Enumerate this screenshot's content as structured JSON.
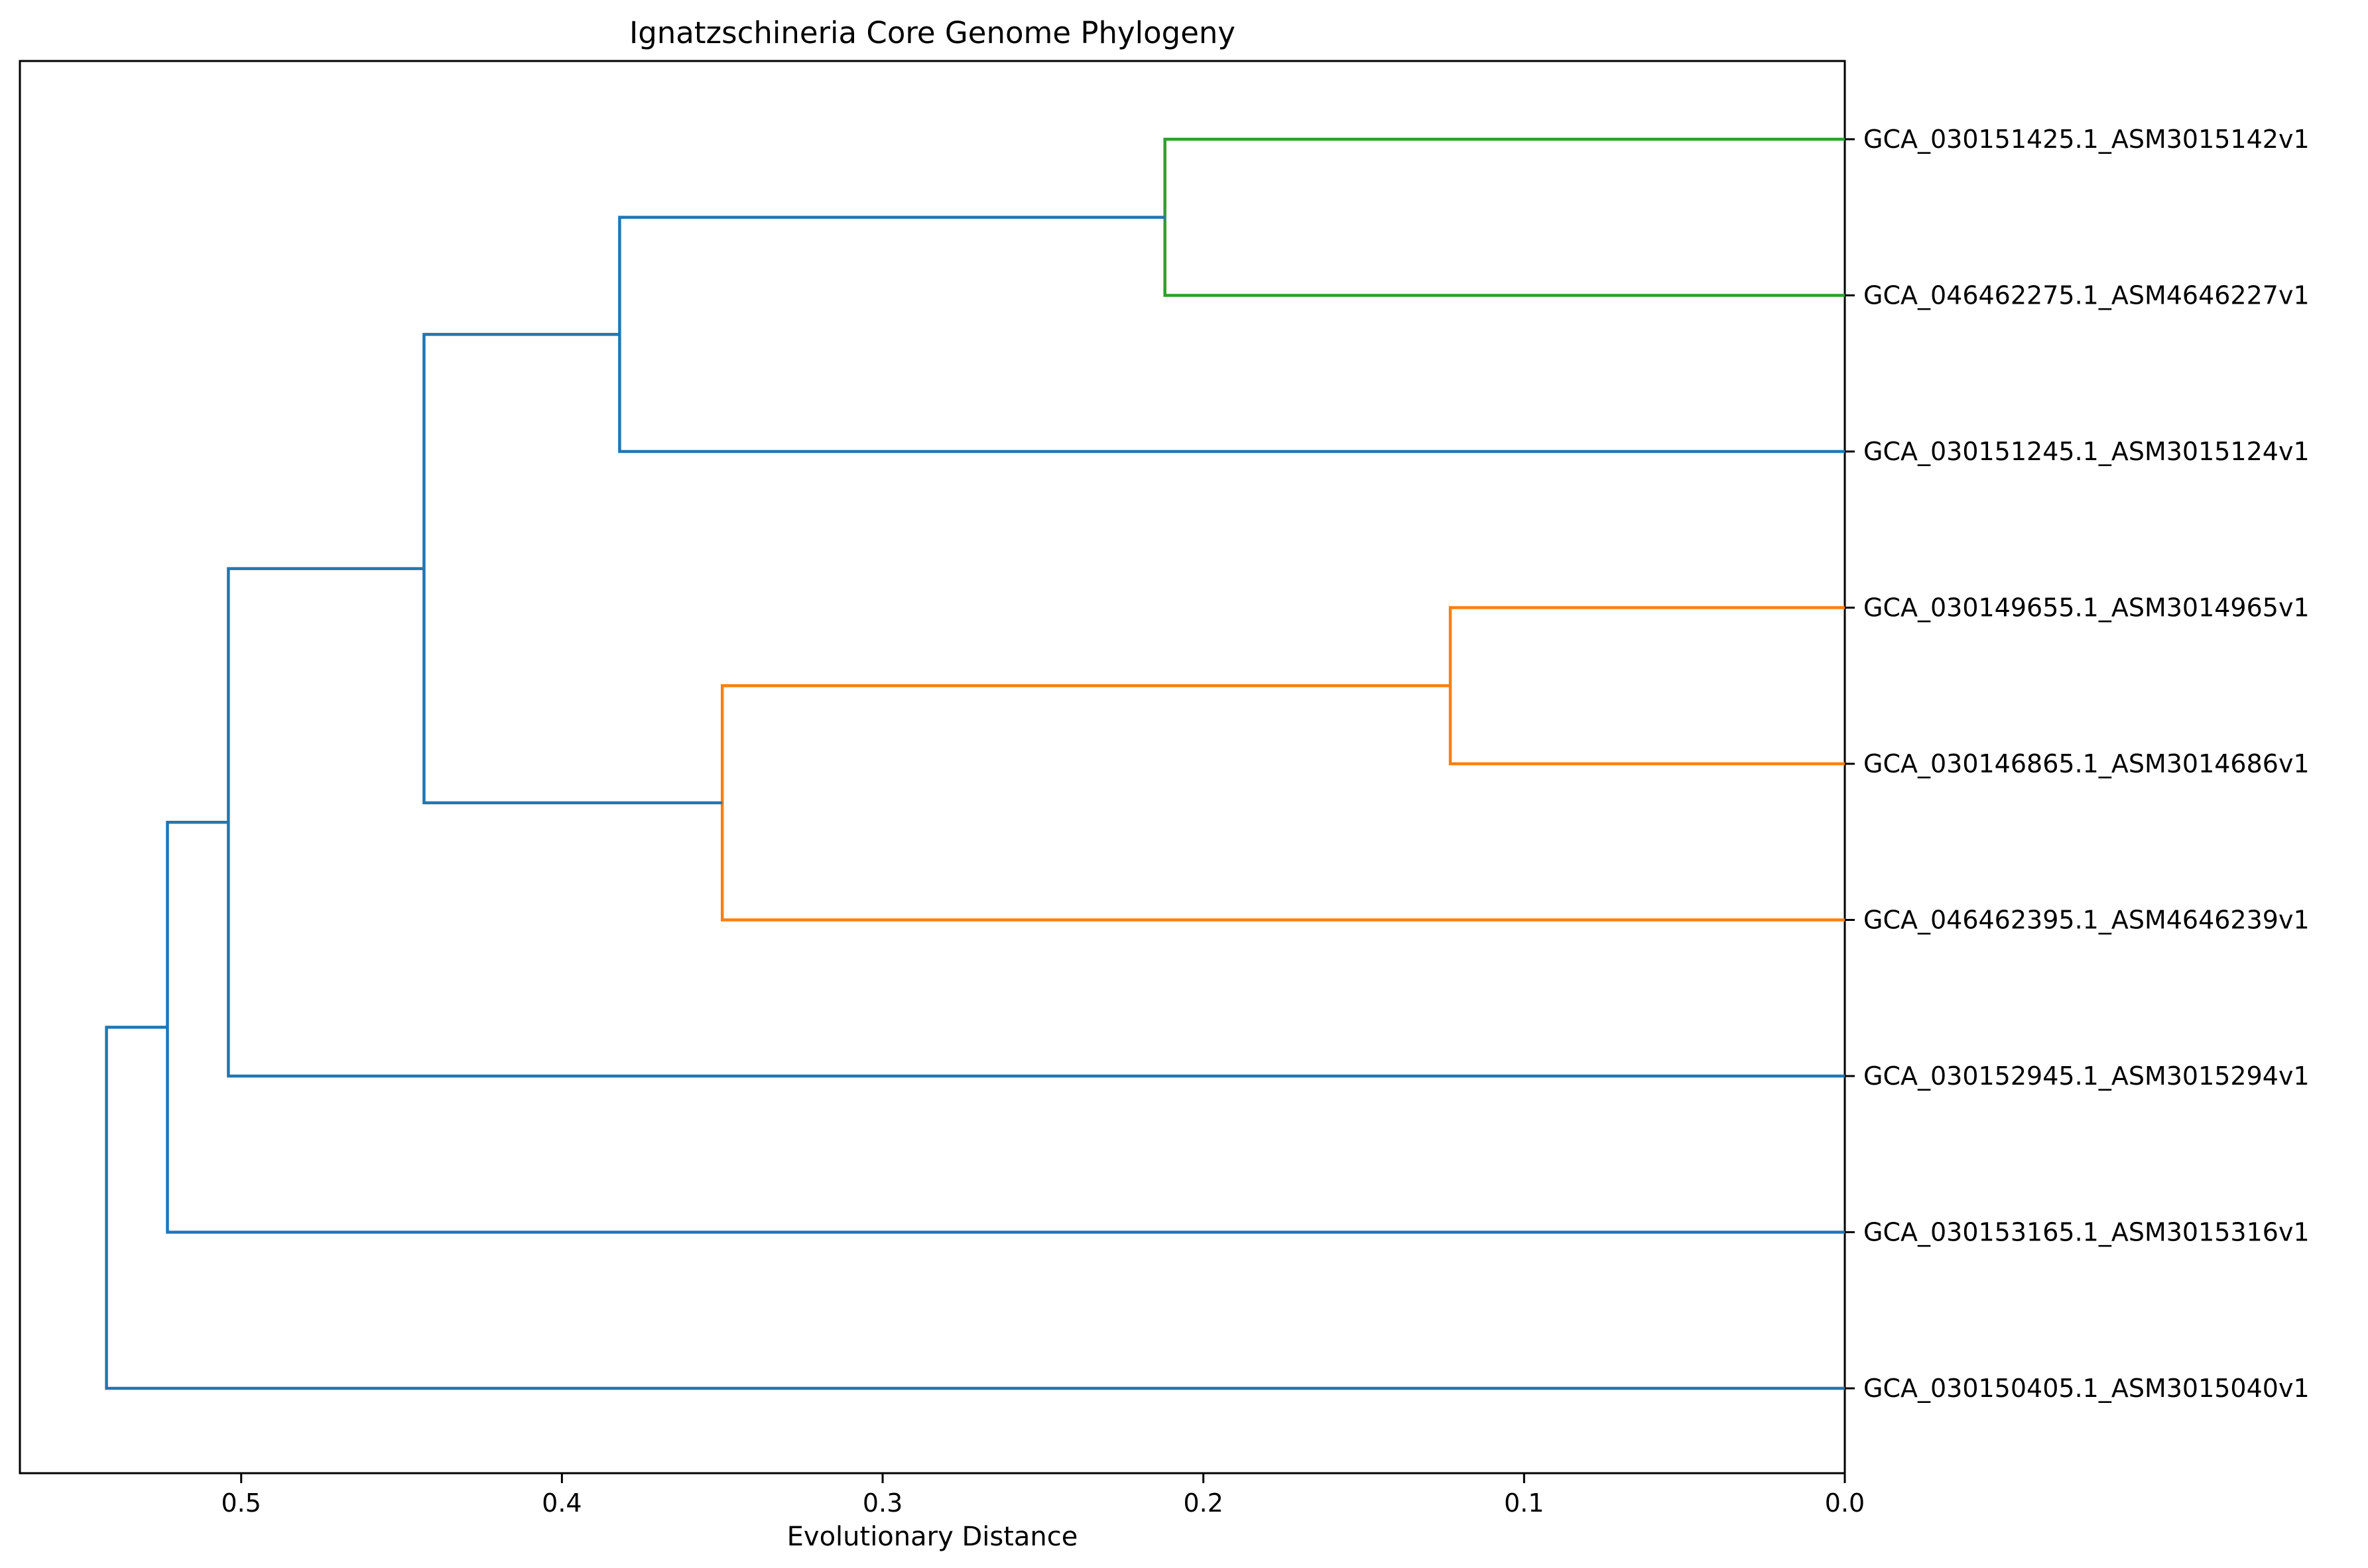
{
  "chart_data": {
    "type": "dendrogram",
    "title": "Ignatzschineria Core Genome Phylogeny",
    "xlabel": "Evolutionary Distance",
    "ylabel": "",
    "xlim": [
      0.569,
      0.0
    ],
    "x_ticks": [
      {
        "value": 0.5,
        "label": "0.5"
      },
      {
        "value": 0.4,
        "label": "0.4"
      },
      {
        "value": 0.3,
        "label": "0.3"
      },
      {
        "value": 0.2,
        "label": "0.2"
      },
      {
        "value": 0.1,
        "label": "0.1"
      },
      {
        "value": 0.0,
        "label": "0.0"
      }
    ],
    "grid": false,
    "leaves": [
      "GCA_030151425.1_ASM3015142v1",
      "GCA_046462275.1_ASM4646227v1",
      "GCA_030151245.1_ASM3015124v1",
      "GCA_030149655.1_ASM3014965v1",
      "GCA_030146865.1_ASM3014686v1",
      "GCA_046462395.1_ASM4646239v1",
      "GCA_030152945.1_ASM3015294v1",
      "GCA_030153165.1_ASM3015316v1",
      "GCA_030150405.1_ASM3015040v1"
    ],
    "clusters": [
      {
        "id": "c_green",
        "members": [
          "GCA_030151425.1_ASM3015142v1",
          "GCA_046462275.1_ASM4646227v1"
        ],
        "distance": 0.212,
        "color": "#2ca02c"
      },
      {
        "id": "c1",
        "members": [
          "c_green",
          "GCA_030151245.1_ASM3015124v1"
        ],
        "distance": 0.382,
        "color": "#1f77b4"
      },
      {
        "id": "c_orange_inner",
        "members": [
          "GCA_030149655.1_ASM3014965v1",
          "GCA_030146865.1_ASM3014686v1"
        ],
        "distance": 0.123,
        "color": "#ff7f0e"
      },
      {
        "id": "c_orange",
        "members": [
          "c_orange_inner",
          "GCA_046462395.1_ASM4646239v1"
        ],
        "distance": 0.35,
        "color": "#ff7f0e"
      },
      {
        "id": "c2",
        "members": [
          "c1",
          "c_orange"
        ],
        "distance": 0.443,
        "color": "#1f77b4"
      },
      {
        "id": "c3",
        "members": [
          "c2",
          "GCA_030152945.1_ASM3015294v1"
        ],
        "distance": 0.504,
        "color": "#1f77b4"
      },
      {
        "id": "c4",
        "members": [
          "c3",
          "GCA_030153165.1_ASM3015316v1"
        ],
        "distance": 0.523,
        "color": "#1f77b4"
      },
      {
        "id": "c5",
        "members": [
          "c4",
          "GCA_030150405.1_ASM3015040v1"
        ],
        "distance": 0.542,
        "color": "#1f77b4"
      }
    ],
    "colors": {
      "above_threshold": "#1f77b4",
      "cluster_green": "#2ca02c",
      "cluster_orange": "#ff7f0e"
    }
  }
}
